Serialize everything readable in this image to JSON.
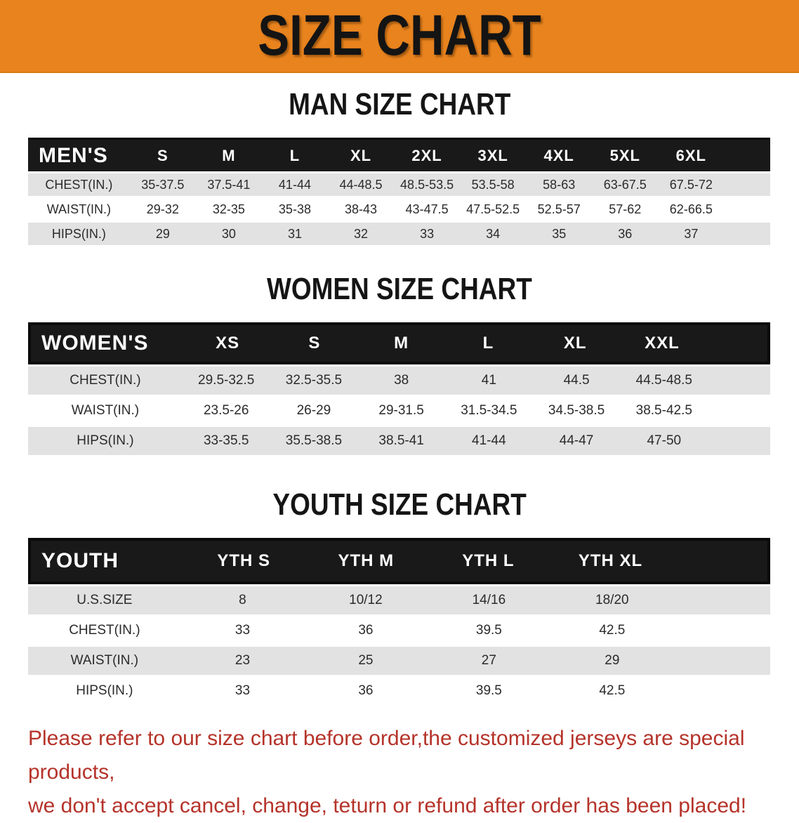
{
  "banner": {
    "title": "SIZE CHART",
    "bg_color": "#E8831E",
    "text_color": "#141414"
  },
  "colors": {
    "header_band": "#191919",
    "row_shade": "#E2E2E2",
    "disclaimer_red": "#B5332A"
  },
  "men": {
    "heading": "MAN SIZE CHART",
    "header_label": "MEN'S",
    "sizes": [
      "S",
      "M",
      "L",
      "XL",
      "2XL",
      "3XL",
      "4XL",
      "5XL",
      "6XL"
    ],
    "rows": [
      {
        "label": "CHEST(IN.)",
        "values": [
          "35-37.5",
          "37.5-41",
          "41-44",
          "44-48.5",
          "48.5-53.5",
          "53.5-58",
          "58-63",
          "63-67.5",
          "67.5-72"
        ]
      },
      {
        "label": "WAIST(IN.)",
        "values": [
          "29-32",
          "32-35",
          "35-38",
          "38-43",
          "43-47.5",
          "47.5-52.5",
          "52.5-57",
          "57-62",
          "62-66.5"
        ]
      },
      {
        "label": "HIPS(IN.)",
        "values": [
          "29",
          "30",
          "31",
          "32",
          "33",
          "34",
          "35",
          "36",
          "37"
        ]
      }
    ]
  },
  "women": {
    "heading": "WOMEN SIZE CHART",
    "header_label": "WOMEN'S",
    "sizes": [
      "XS",
      "S",
      "M",
      "L",
      "XL",
      "XXL"
    ],
    "rows": [
      {
        "label": "CHEST(IN.)",
        "values": [
          "29.5-32.5",
          "32.5-35.5",
          "38",
          "41",
          "44.5",
          "44.5-48.5"
        ]
      },
      {
        "label": "WAIST(IN.)",
        "values": [
          "23.5-26",
          "26-29",
          "29-31.5",
          "31.5-34.5",
          "34.5-38.5",
          "38.5-42.5"
        ]
      },
      {
        "label": "HIPS(IN.)",
        "values": [
          "33-35.5",
          "35.5-38.5",
          "38.5-41",
          "41-44",
          "44-47",
          "47-50"
        ]
      }
    ]
  },
  "youth": {
    "heading": "YOUTH SIZE CHART",
    "header_label": "YOUTH",
    "sizes": [
      "YTH S",
      "YTH M",
      "YTH L",
      "YTH XL"
    ],
    "rows": [
      {
        "label": "U.S.SIZE",
        "values": [
          "8",
          "10/12",
          "14/16",
          "18/20"
        ]
      },
      {
        "label": "CHEST(IN.)",
        "values": [
          "33",
          "36",
          "39.5",
          "42.5"
        ]
      },
      {
        "label": "WAIST(IN.)",
        "values": [
          "23",
          "25",
          "27",
          "29"
        ]
      },
      {
        "label": "HIPS(IN.)",
        "values": [
          "33",
          "36",
          "39.5",
          "42.5"
        ]
      }
    ]
  },
  "disclaimer": {
    "line1": "Please refer to our size chart before order,the customized jerseys are special products,",
    "line2": "we don't accept cancel, change, teturn or refund after order has been placed!"
  }
}
